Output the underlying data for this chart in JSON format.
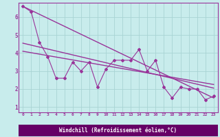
{
  "xlabel": "Windchill (Refroidissement éolien,°C)",
  "background_color": "#c8ecec",
  "grid_color": "#a8d4d4",
  "line_color": "#993399",
  "xlabel_bg": "#660066",
  "xlabel_fg": "#ffffff",
  "xlim": [
    -0.5,
    23.5
  ],
  "ylim": [
    0.7,
    6.8
  ],
  "xticks": [
    0,
    1,
    2,
    3,
    4,
    5,
    6,
    7,
    8,
    9,
    10,
    11,
    12,
    13,
    14,
    15,
    16,
    17,
    18,
    19,
    20,
    21,
    22,
    23
  ],
  "yticks": [
    1,
    2,
    3,
    4,
    5,
    6
  ],
  "data_x": [
    0,
    1,
    2,
    3,
    4,
    5,
    6,
    7,
    8,
    9,
    10,
    11,
    12,
    13,
    14,
    15,
    16,
    17,
    18,
    19,
    20,
    21,
    22,
    23
  ],
  "data_y": [
    6.6,
    6.3,
    4.6,
    3.8,
    2.6,
    2.6,
    3.5,
    3.0,
    3.5,
    2.1,
    3.1,
    3.6,
    3.6,
    3.6,
    4.2,
    3.0,
    3.6,
    2.1,
    1.5,
    2.1,
    2.0,
    2.0,
    1.4,
    1.6
  ],
  "trend1_x": [
    0,
    23
  ],
  "trend1_y": [
    6.6,
    1.5
  ],
  "trend2_x": [
    0,
    23
  ],
  "trend2_y": [
    4.55,
    2.05
  ],
  "trend3_x": [
    0,
    23
  ],
  "trend3_y": [
    4.1,
    2.25
  ]
}
